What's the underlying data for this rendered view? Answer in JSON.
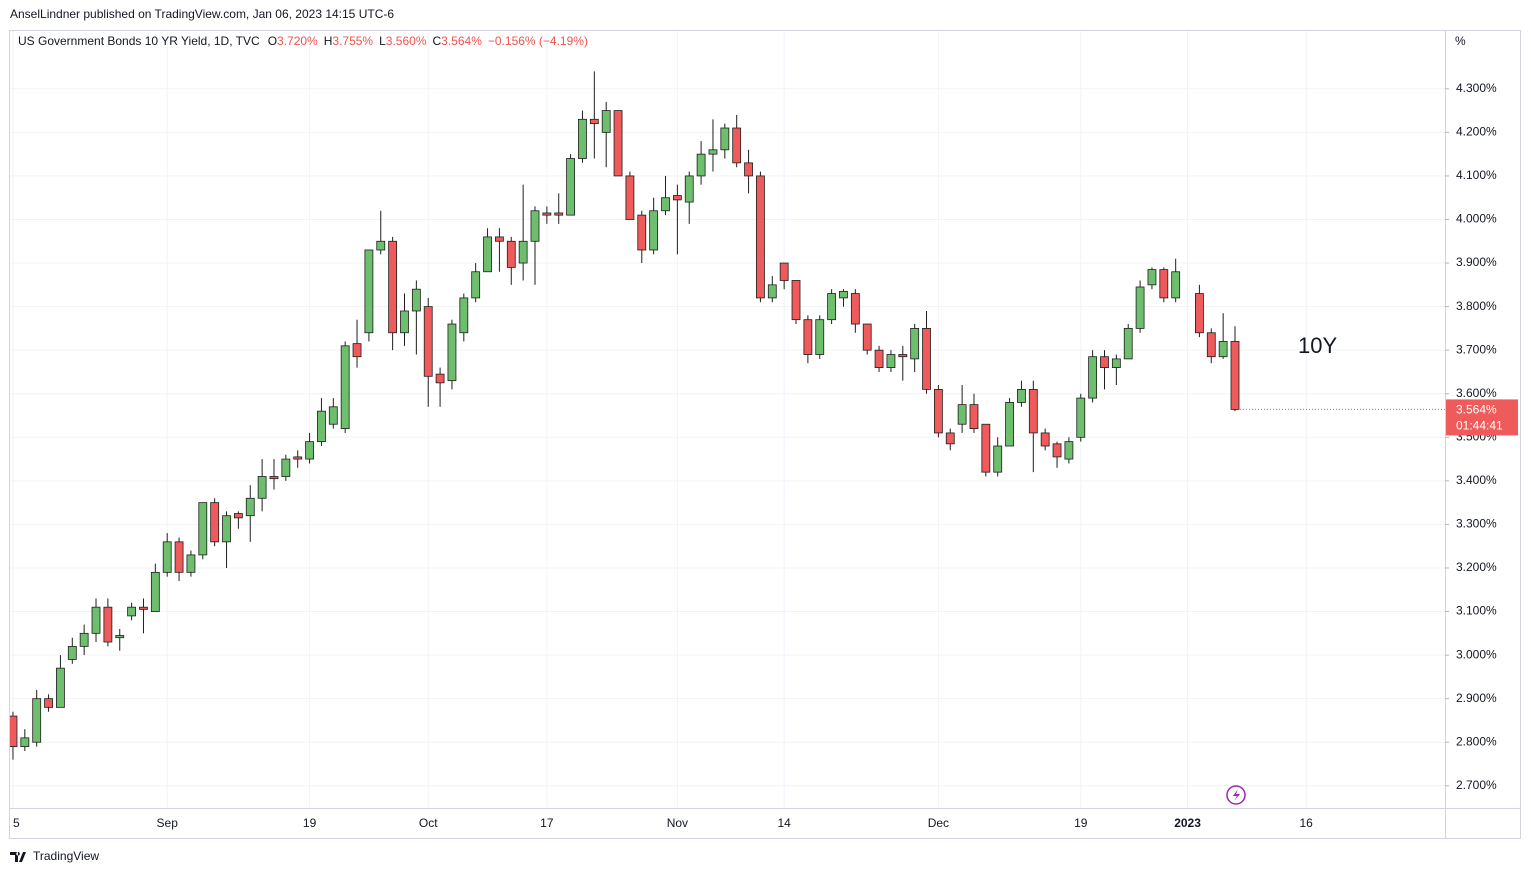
{
  "header": "AnselLindner published on TradingView.com, Jan 06, 2023 14:15 UTC-6",
  "footer": "TradingView",
  "chart_data": {
    "type": "candlestick",
    "title": "US Government Bonds 10 YR Yield, 1D, TVC",
    "ohlc": [
      {
        "key": "O",
        "value": "3.720%"
      },
      {
        "key": "H",
        "value": "3.755%"
      },
      {
        "key": "L",
        "value": "3.560%"
      },
      {
        "key": "C",
        "value": "3.564%"
      }
    ],
    "change": "−0.156% (−4.19%)",
    "unit": "%",
    "annotation": "10Y",
    "last_price_label": "3.564%",
    "countdown": "01:44:41",
    "up_color": "#6dbf6d",
    "down_color": "#ef5b5b",
    "outline_color": "#1e1e1e",
    "grid": true,
    "x": [
      0,
      1,
      2,
      3,
      4,
      5,
      6,
      7,
      8,
      9,
      10,
      11,
      12,
      13,
      14,
      15,
      16,
      17,
      18,
      19,
      20,
      21,
      22,
      23,
      24,
      25,
      26,
      27,
      28,
      29,
      30,
      31,
      32,
      33,
      34,
      35,
      36,
      37,
      38,
      39,
      40,
      41,
      42,
      43,
      44,
      45,
      46,
      47,
      48,
      49,
      50,
      51,
      52,
      53,
      54,
      55,
      56,
      57,
      58,
      59,
      60,
      61,
      62,
      63,
      64,
      65,
      66,
      67,
      68,
      69,
      70,
      71,
      72,
      73,
      74,
      75,
      76,
      77,
      78,
      79,
      80,
      81,
      82,
      83,
      84,
      85,
      86,
      87,
      88,
      89,
      90,
      91,
      92,
      93,
      94,
      95,
      96,
      97,
      98,
      100,
      101,
      102,
      103
    ],
    "open": [
      2.86,
      2.79,
      2.8,
      2.9,
      2.88,
      2.99,
      3.02,
      3.05,
      3.11,
      3.04,
      3.09,
      3.11,
      3.1,
      3.19,
      3.26,
      3.19,
      3.23,
      3.35,
      3.26,
      3.325,
      3.32,
      3.36,
      3.41,
      3.41,
      3.455,
      3.45,
      3.49,
      3.53,
      3.52,
      3.715,
      3.74,
      3.93,
      3.95,
      3.74,
      3.79,
      3.8,
      3.645,
      3.63,
      3.74,
      3.82,
      3.88,
      3.96,
      3.95,
      3.9,
      3.95,
      4.015,
      4.015,
      4.01,
      4.14,
      4.23,
      4.2,
      4.25,
      4.1,
      4.01,
      3.93,
      4.02,
      4.055,
      4.04,
      4.1,
      4.15,
      4.16,
      4.21,
      4.13,
      4.1,
      3.82,
      3.9,
      3.86,
      3.77,
      3.69,
      3.77,
      3.82,
      3.83,
      3.76,
      3.7,
      3.66,
      3.69,
      3.68,
      3.75,
      3.61,
      3.51,
      3.53,
      3.575,
      3.53,
      3.42,
      3.48,
      3.58,
      3.61,
      3.51,
      3.485,
      3.45,
      3.5,
      3.59,
      3.685,
      3.66,
      3.68,
      3.75,
      3.85,
      3.885,
      3.82,
      3.83,
      3.74,
      3.685,
      3.72
    ],
    "high": [
      2.87,
      2.83,
      2.92,
      2.91,
      3.0,
      3.04,
      3.07,
      3.13,
      3.13,
      3.06,
      3.12,
      3.13,
      3.21,
      3.28,
      3.27,
      3.24,
      3.35,
      3.36,
      3.33,
      3.33,
      3.39,
      3.45,
      3.45,
      3.46,
      3.47,
      3.51,
      3.59,
      3.59,
      3.72,
      3.77,
      3.93,
      4.02,
      3.96,
      3.83,
      3.86,
      3.82,
      3.66,
      3.77,
      3.83,
      3.9,
      3.98,
      3.98,
      3.96,
      4.08,
      4.03,
      4.03,
      4.06,
      4.15,
      4.25,
      4.34,
      4.27,
      4.25,
      4.11,
      4.02,
      4.05,
      4.1,
      4.08,
      4.11,
      4.18,
      4.23,
      4.22,
      4.24,
      4.16,
      4.11,
      3.87,
      3.9,
      3.86,
      3.78,
      3.78,
      3.84,
      3.84,
      3.84,
      3.76,
      3.71,
      3.7,
      3.71,
      3.76,
      3.79,
      3.62,
      3.52,
      3.62,
      3.6,
      3.53,
      3.5,
      3.59,
      3.63,
      3.63,
      3.52,
      3.49,
      3.5,
      3.6,
      3.7,
      3.7,
      3.69,
      3.76,
      3.86,
      3.89,
      3.89,
      3.91,
      3.85,
      3.75,
      3.785,
      3.755
    ],
    "low": [
      2.76,
      2.78,
      2.79,
      2.87,
      2.88,
      2.98,
      3.0,
      3.03,
      3.02,
      3.01,
      3.08,
      3.05,
      3.1,
      3.18,
      3.17,
      3.18,
      3.22,
      3.25,
      3.2,
      3.29,
      3.26,
      3.33,
      3.38,
      3.4,
      3.43,
      3.44,
      3.48,
      3.52,
      3.51,
      3.66,
      3.72,
      3.92,
      3.7,
      3.71,
      3.69,
      3.57,
      3.57,
      3.61,
      3.72,
      3.81,
      3.88,
      3.88,
      3.85,
      3.86,
      3.85,
      3.99,
      3.99,
      4.01,
      4.13,
      4.14,
      4.12,
      4.1,
      4.0,
      3.9,
      3.92,
      4.01,
      3.92,
      3.99,
      4.08,
      4.11,
      4.14,
      4.12,
      4.06,
      3.81,
      3.81,
      3.84,
      3.76,
      3.67,
      3.68,
      3.76,
      3.8,
      3.74,
      3.69,
      3.65,
      3.65,
      3.63,
      3.65,
      3.6,
      3.5,
      3.47,
      3.51,
      3.51,
      3.41,
      3.41,
      3.48,
      3.57,
      3.42,
      3.47,
      3.43,
      3.44,
      3.49,
      3.58,
      3.61,
      3.62,
      3.68,
      3.74,
      3.84,
      3.81,
      3.81,
      3.73,
      3.67,
      3.68,
      3.56
    ],
    "close": [
      2.79,
      2.81,
      2.9,
      2.88,
      2.97,
      3.02,
      3.05,
      3.11,
      3.03,
      3.045,
      3.11,
      3.105,
      3.19,
      3.26,
      3.19,
      3.23,
      3.35,
      3.26,
      3.32,
      3.315,
      3.36,
      3.41,
      3.405,
      3.45,
      3.45,
      3.49,
      3.56,
      3.57,
      3.71,
      3.685,
      3.93,
      3.95,
      3.74,
      3.79,
      3.84,
      3.64,
      3.625,
      3.76,
      3.82,
      3.88,
      3.96,
      3.95,
      3.89,
      3.95,
      4.02,
      4.01,
      4.01,
      4.14,
      4.23,
      4.22,
      4.25,
      4.1,
      4.0,
      3.93,
      4.02,
      4.05,
      4.045,
      4.1,
      4.15,
      4.16,
      4.21,
      4.13,
      4.1,
      3.82,
      3.85,
      3.86,
      3.77,
      3.69,
      3.77,
      3.83,
      3.835,
      3.76,
      3.7,
      3.66,
      3.69,
      3.685,
      3.75,
      3.61,
      3.51,
      3.485,
      3.575,
      3.52,
      3.42,
      3.48,
      3.58,
      3.61,
      3.51,
      3.48,
      3.455,
      3.49,
      3.59,
      3.685,
      3.66,
      3.68,
      3.75,
      3.845,
      3.885,
      3.82,
      3.88,
      3.74,
      3.685,
      3.72,
      3.564
    ],
    "xlim": [
      -0.25,
      120.7
    ],
    "xticks": [
      {
        "value": 0,
        "label": "5"
      },
      {
        "value": 13,
        "label": "Sep"
      },
      {
        "value": 25,
        "label": "19"
      },
      {
        "value": 35,
        "label": "Oct"
      },
      {
        "value": 45,
        "label": "17"
      },
      {
        "value": 56,
        "label": "Nov"
      },
      {
        "value": 65,
        "label": "14"
      },
      {
        "value": 78,
        "label": "Dec"
      },
      {
        "value": 90,
        "label": "19"
      },
      {
        "value": 99,
        "label": "2023"
      },
      {
        "value": 109,
        "label": "16"
      }
    ],
    "ylim": [
      2.649,
      4.435
    ],
    "yticks": [
      {
        "value": 2.7,
        "label": "2.700%"
      },
      {
        "value": 2.8,
        "label": "2.800%"
      },
      {
        "value": 2.9,
        "label": "2.900%"
      },
      {
        "value": 3.0,
        "label": "3.000%"
      },
      {
        "value": 3.1,
        "label": "3.100%"
      },
      {
        "value": 3.2,
        "label": "3.200%"
      },
      {
        "value": 3.3,
        "label": "3.300%"
      },
      {
        "value": 3.4,
        "label": "3.400%"
      },
      {
        "value": 3.5,
        "label": "3.500%"
      },
      {
        "value": 3.6,
        "label": "3.600%"
      },
      {
        "value": 3.7,
        "label": "3.700%"
      },
      {
        "value": 3.8,
        "label": "3.800%"
      },
      {
        "value": 3.9,
        "label": "3.900%"
      },
      {
        "value": 4.0,
        "label": "4.000%"
      },
      {
        "value": 4.1,
        "label": "4.100%"
      },
      {
        "value": 4.2,
        "label": "4.200%"
      },
      {
        "value": 4.3,
        "label": "4.300%"
      }
    ]
  }
}
